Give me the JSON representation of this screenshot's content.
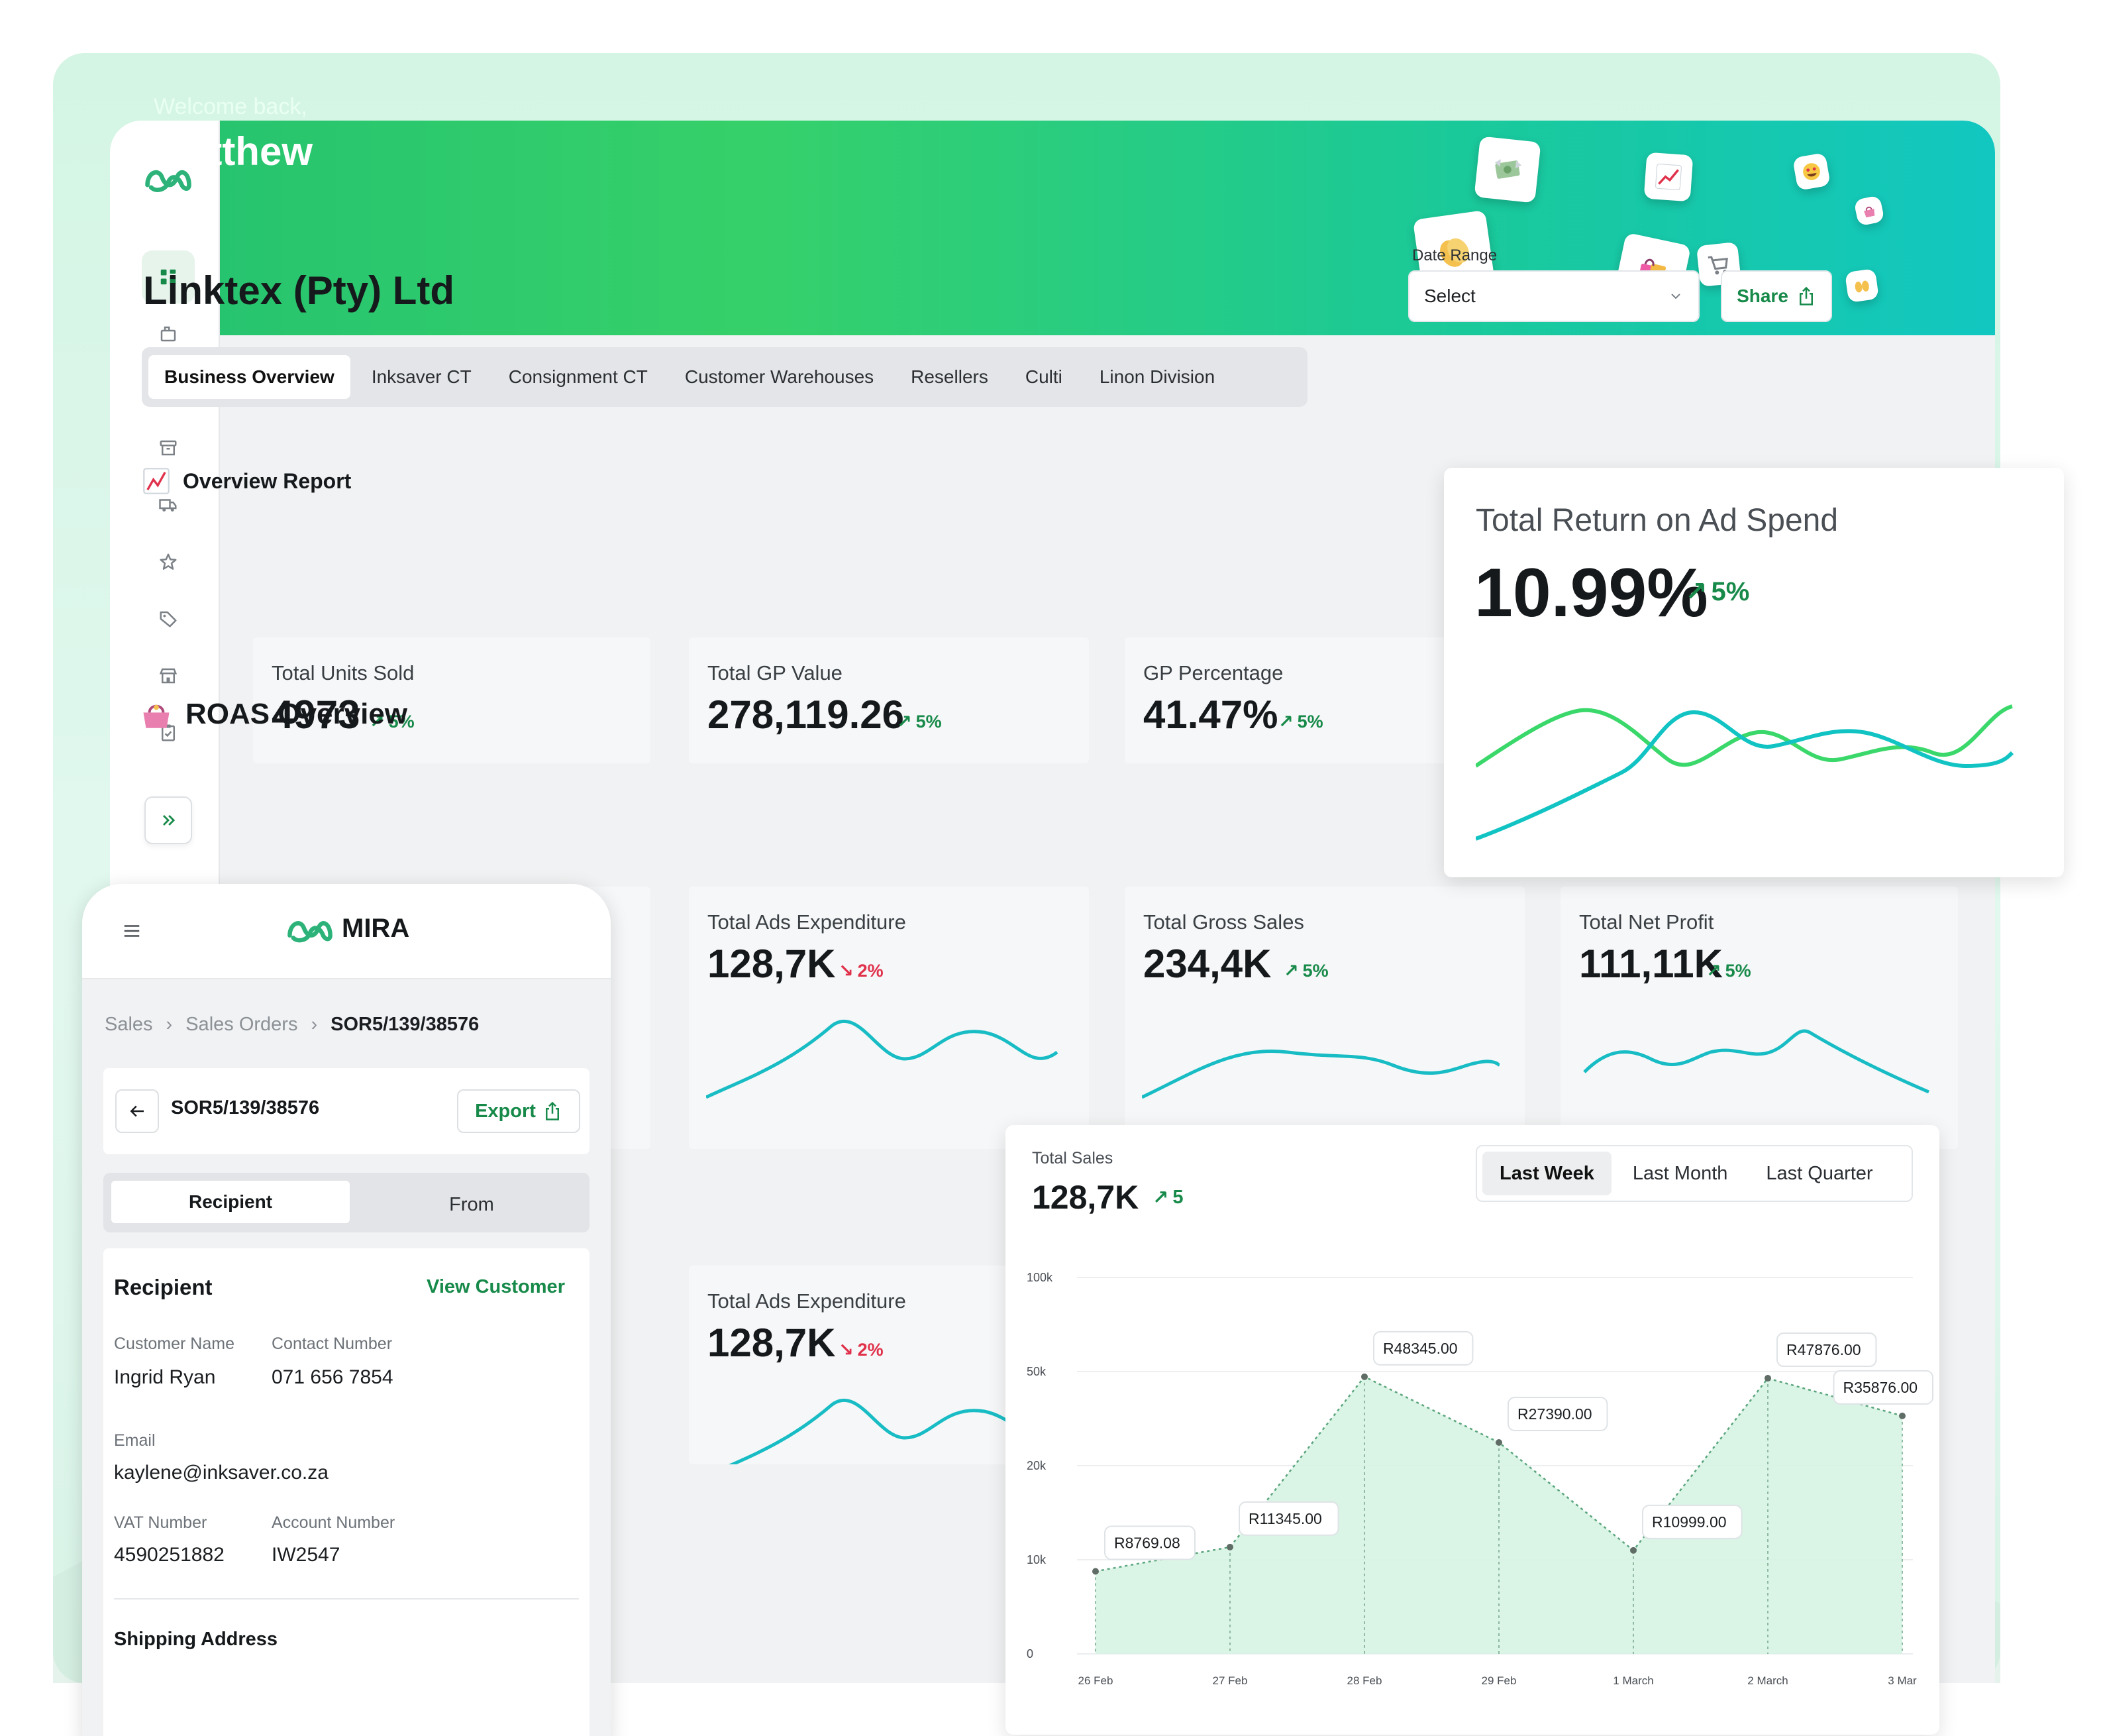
{
  "banner": {
    "welcome": "Welcome back,",
    "name": "Matthew"
  },
  "company": "Linktex (Pty) Ltd",
  "date_range": {
    "label": "Date Range",
    "placeholder": "Select"
  },
  "share_label": "Share",
  "tabs": [
    {
      "label": "Business Overview"
    },
    {
      "label": "Inksaver CT"
    },
    {
      "label": "Consignment CT"
    },
    {
      "label": "Customer Warehouses"
    },
    {
      "label": "Resellers"
    },
    {
      "label": "Culti"
    },
    {
      "label": "Linon Division"
    }
  ],
  "overview": {
    "title": "Overview Report",
    "cards": [
      {
        "label": "Total Units Sold",
        "value": "4973",
        "trend": "5%"
      },
      {
        "label": "Total GP Value",
        "value": "278,119.26",
        "trend": "5%"
      },
      {
        "label": "GP Percentage",
        "value": "41.47%",
        "trend": "5%"
      }
    ]
  },
  "roas_overview": {
    "title": "ROAS Overview",
    "cards": [
      {
        "label": "Total Ads Expenditure",
        "value": "128,7K",
        "trend": "2%",
        "direction": "down"
      },
      {
        "label": "Total Gross Sales",
        "value": "234,4K",
        "trend": "5%",
        "direction": "up"
      },
      {
        "label": "Total Net Profit",
        "value": "111,11K",
        "trend": "5%",
        "direction": "up"
      }
    ],
    "second_row_card": {
      "label": "Total Ads Expenditure",
      "value": "128,7K",
      "trend": "2%",
      "direction": "down"
    }
  },
  "roas_card": {
    "title": "Total Return on Ad Spend",
    "value": "10.99%",
    "trend": "5%"
  },
  "mobile": {
    "brand": "MIRA",
    "breadcrumb": [
      "Sales",
      "Sales Orders",
      "SOR5/139/38576"
    ],
    "order_id": "SOR5/139/38576",
    "export_label": "Export",
    "segments": {
      "recipient": "Recipient",
      "from": "From"
    },
    "recipient": {
      "title": "Recipient",
      "view_customer": "View Customer",
      "customer_name_label": "Customer Name",
      "customer_name": "Ingrid Ryan",
      "contact_number_label": "Contact Number",
      "contact_number": "071 656 7854",
      "email_label": "Email",
      "email": "kaylene@inksaver.co.za",
      "vat_label": "VAT Number",
      "vat": "4590251882",
      "account_label": "Account Number",
      "account": "IW2547",
      "shipping_title": "Shipping Address"
    }
  },
  "total_sales": {
    "label": "Total Sales",
    "value": "128,7K",
    "trend": "5",
    "periods": [
      "Last Week",
      "Last Month",
      "Last Quarter"
    ],
    "active_period": "Last Week"
  },
  "chart_data": {
    "type": "area",
    "title": "Total Sales",
    "x": [
      "26 Feb",
      "27 Feb",
      "28 Feb",
      "29 Feb",
      "1 March",
      "2 March",
      "3 Mar"
    ],
    "y_ticks": [
      "0",
      "10k",
      "20k",
      "50k",
      "100k"
    ],
    "series": [
      {
        "values": [
          8769.08,
          11345.0,
          48345.0,
          27390.0,
          10999.0,
          47876.0,
          35876.0
        ],
        "labels": [
          "R8769.08",
          "R11345.00",
          "R48345.00",
          "R27390.00",
          "R10999.00",
          "R47876.00",
          "R35876.00"
        ]
      }
    ],
    "grid": true,
    "colors": {
      "fill": "#d6f3e3",
      "stroke": "#5aa57c",
      "accent": "#178a4a"
    }
  },
  "colors": {
    "brand_green": "#178a4a",
    "accent_teal": "#12c3c3",
    "accent_green": "#3ad86a",
    "down_red": "#e0314b"
  }
}
